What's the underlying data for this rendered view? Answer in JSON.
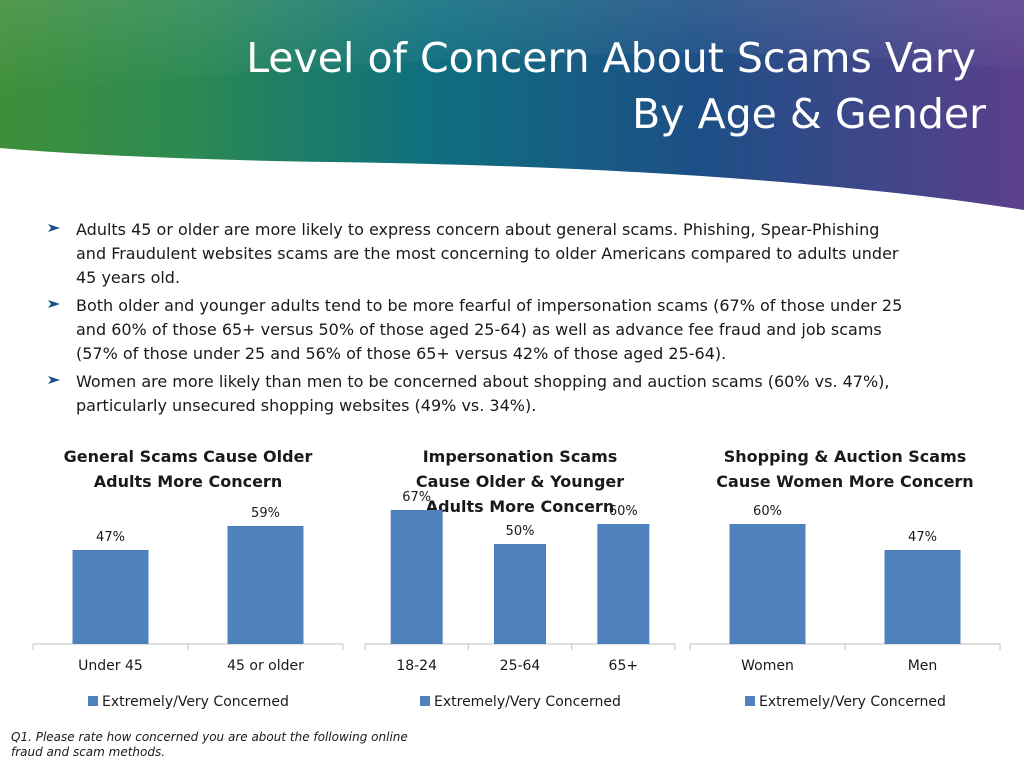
{
  "header": {
    "title_line1": "Level of Concern About Scams Vary",
    "title_line2": "By Age & Gender"
  },
  "bullets": [
    "Adults 45 or older are more likely to express concern about general scams.  Phishing, Spear-Phishing and Fraudulent websites scams are the most concerning to older Americans compared to adults under 45 years old.",
    "Both older and younger adults tend to be more fearful of impersonation scams (67% of those under 25 and 60% of those 65+ versus 50% of those aged 25-64) as well as advance fee fraud and job scams (57% of those under 25 and 56% of those 65+ versus 42% of those aged 25-64).",
    "Women are more likely than men to be concerned about shopping and auction scams (60% vs. 47%), particularly unsecured shopping websites (49% vs. 34%)."
  ],
  "colors": {
    "bar": "#4f81bd",
    "arrow": "#1f4e8c"
  },
  "chart_data": [
    {
      "type": "bar",
      "title": "General Scams Cause Older Adults More Concern",
      "categories": [
        "Under 45",
        "45 or older"
      ],
      "series": [
        {
          "name": "Extremely/Very Concerned",
          "values": [
            47,
            59
          ]
        }
      ],
      "labels": [
        "47%",
        "59%"
      ],
      "legend": "bottom",
      "grid": false
    },
    {
      "type": "bar",
      "title": "Impersonation Scams Cause Older & Younger Adults More Concern",
      "categories": [
        "18-24",
        "25-64",
        "65+"
      ],
      "series": [
        {
          "name": "Extremely/Very Concerned",
          "values": [
            67,
            50,
            60
          ]
        }
      ],
      "labels": [
        "67%",
        "50%",
        "60%"
      ],
      "legend": "bottom",
      "grid": false
    },
    {
      "type": "bar",
      "title": "Shopping & Auction Scams Cause Women More Concern",
      "categories": [
        "Women",
        "Men"
      ],
      "series": [
        {
          "name": "Extremely/Very Concerned",
          "values": [
            60,
            47
          ]
        }
      ],
      "labels": [
        "60%",
        "47%"
      ],
      "legend": "bottom",
      "grid": false
    }
  ],
  "footnote": "Q1. Please rate how concerned you are about the following online fraud and scam methods."
}
